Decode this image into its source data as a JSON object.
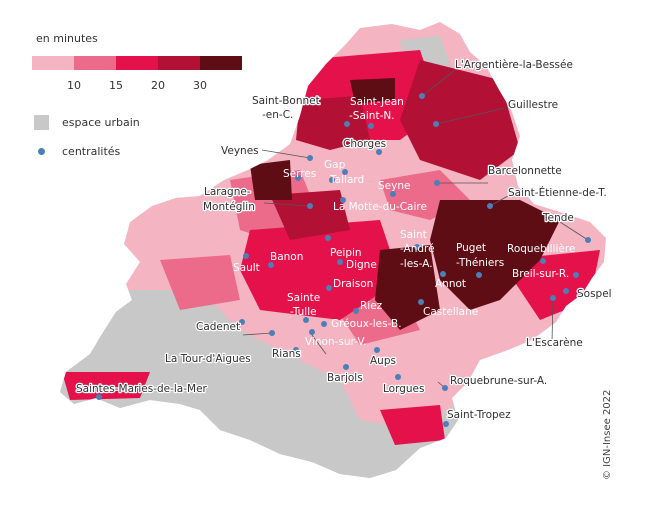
{
  "legend": {
    "unit_label": "en minutes",
    "ticks": [
      "10",
      "15",
      "20",
      "30"
    ],
    "colors": [
      "#f4b4c2",
      "#ec6b8a",
      "#e4114a",
      "#b21035",
      "#5e0d14"
    ],
    "urban_label": "espace urbain",
    "urban_color": "#c8c8c8",
    "centrality_label": "centralités",
    "centrality_color": "#4a7fb8"
  },
  "cities": [
    {
      "name": "L'Argentière-la-Bessée"
    },
    {
      "name": "Guillestre"
    },
    {
      "name": "Saint-Bonnet"
    },
    {
      "name": "-en-C."
    },
    {
      "name": "Saint-Jean"
    },
    {
      "name": "-Saint-N."
    },
    {
      "name": "Chorges"
    },
    {
      "name": "Veynes"
    },
    {
      "name": "Gap"
    },
    {
      "name": "Serres"
    },
    {
      "name": "Tallard"
    },
    {
      "name": "Barcelonnette"
    },
    {
      "name": "Seyne"
    },
    {
      "name": "Saint-Étienne-de-T."
    },
    {
      "name": "Laragne-"
    },
    {
      "name": "Montéglin"
    },
    {
      "name": "La Motte-du-Caire"
    },
    {
      "name": "Tende"
    },
    {
      "name": "Saint"
    },
    {
      "name": "-André"
    },
    {
      "name": "-les-A."
    },
    {
      "name": "Puget"
    },
    {
      "name": "-Théniers"
    },
    {
      "name": "Roquebillière"
    },
    {
      "name": "Peipin"
    },
    {
      "name": "Sault"
    },
    {
      "name": "Banon"
    },
    {
      "name": "Breil-sur-R."
    },
    {
      "name": "Annot"
    },
    {
      "name": "Sospel"
    },
    {
      "name": "Digne"
    },
    {
      "name": "Draison"
    },
    {
      "name": "Sainte"
    },
    {
      "name": "-Tulle"
    },
    {
      "name": "Riez"
    },
    {
      "name": "Castellane"
    },
    {
      "name": "Cadenet"
    },
    {
      "name": "Gréoux-les-B."
    },
    {
      "name": "L'Escarène"
    },
    {
      "name": "Vinon-sur-V."
    },
    {
      "name": "La Tour-d'Aigues"
    },
    {
      "name": "Rians"
    },
    {
      "name": "Aups"
    },
    {
      "name": "Barjols"
    },
    {
      "name": "Roquebrune-sur-A."
    },
    {
      "name": "Lorgues"
    },
    {
      "name": "Saintes-Maries-de-la-Mer"
    },
    {
      "name": "Saint-Tropez"
    }
  ],
  "copyright": "© IGN-Insee 2022"
}
